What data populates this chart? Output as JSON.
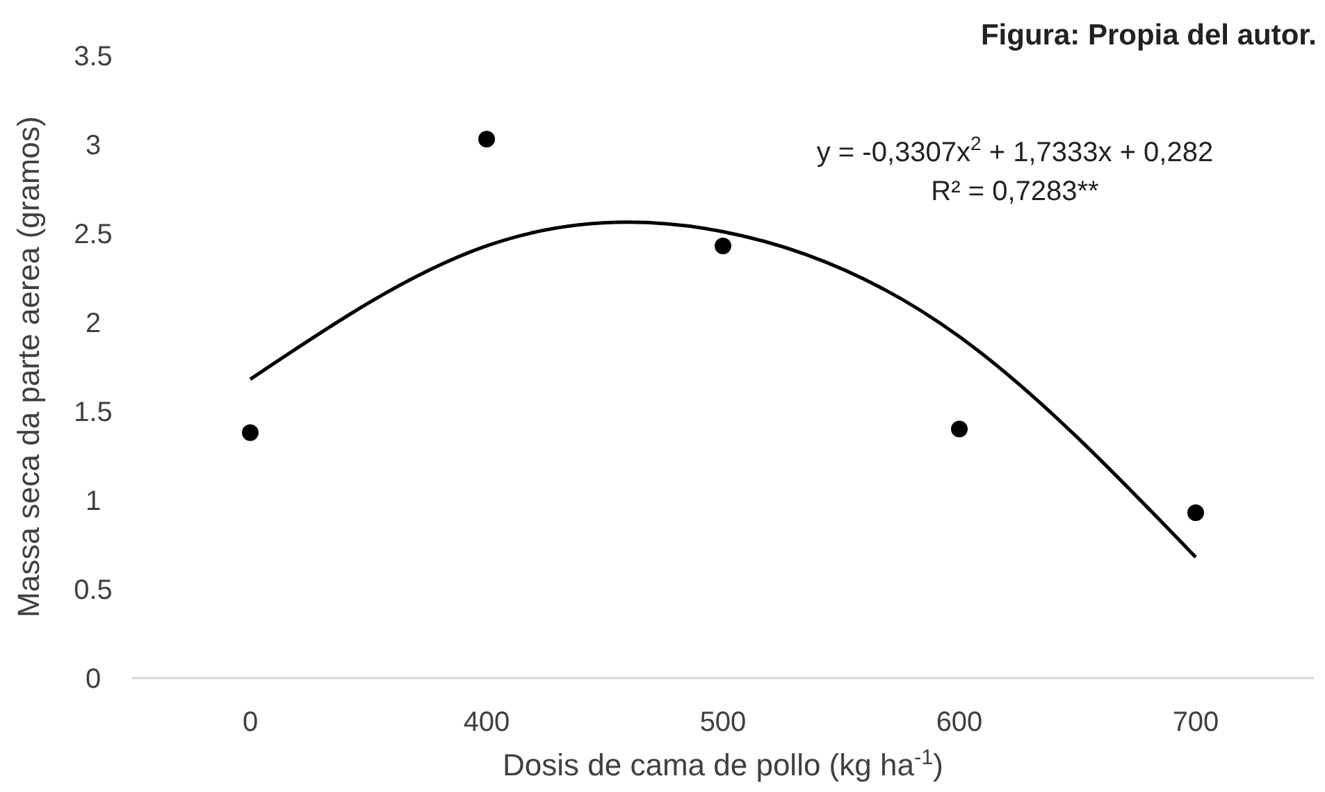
{
  "chart_data": {
    "type": "scatter",
    "xlabel": "Dosis de cama de pollo (kg ha$^{-1}$)",
    "ylabel": "Massa seca da parte aerea (gramos)",
    "categories": [
      "0",
      "400",
      "500",
      "600",
      "700"
    ],
    "series": [
      {
        "color": "#000000",
        "marker": "circle",
        "values": [
          1.38,
          3.03,
          2.43,
          1.4,
          0.93
        ]
      },
      {
        "type": "line",
        "color": "#000000",
        "marker": "none",
        "values": [
          1.68,
          2.43,
          2.51,
          1.92,
          0.68
        ]
      }
    ],
    "ylim": [
      0,
      3.5
    ],
    "yticks": [
      0,
      0.5,
      1,
      1.5,
      2,
      2.5,
      3,
      3.5
    ],
    "grid": false,
    "annotations": [
      "Figura: Propia del autor.",
      "y = -0,3307x$^{2}$ + 1,7333x + 0,282",
      "R² = 0,7283**"
    ]
  }
}
